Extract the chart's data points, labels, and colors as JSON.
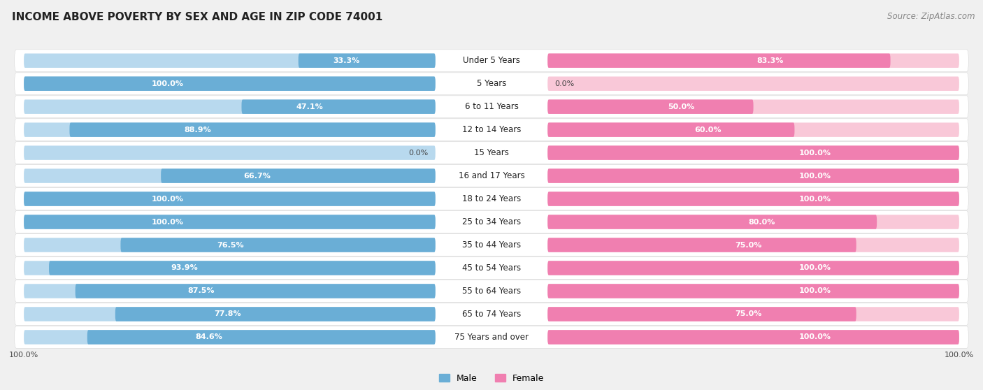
{
  "title": "INCOME ABOVE POVERTY BY SEX AND AGE IN ZIP CODE 74001",
  "source": "Source: ZipAtlas.com",
  "categories": [
    "Under 5 Years",
    "5 Years",
    "6 to 11 Years",
    "12 to 14 Years",
    "15 Years",
    "16 and 17 Years",
    "18 to 24 Years",
    "25 to 34 Years",
    "35 to 44 Years",
    "45 to 54 Years",
    "55 to 64 Years",
    "65 to 74 Years",
    "75 Years and over"
  ],
  "male_values": [
    33.3,
    100.0,
    47.1,
    88.9,
    0.0,
    66.7,
    100.0,
    100.0,
    76.5,
    93.9,
    87.5,
    77.8,
    84.6
  ],
  "female_values": [
    83.3,
    0.0,
    50.0,
    60.0,
    100.0,
    100.0,
    100.0,
    80.0,
    75.0,
    100.0,
    100.0,
    75.0,
    100.0
  ],
  "male_color": "#6aaed6",
  "female_color": "#f07fb0",
  "male_color_light": "#b8d9ee",
  "female_color_light": "#f9c8d8",
  "background_color": "#f0f0f0",
  "row_bg_color": "#e8e8e8",
  "title_fontsize": 11,
  "label_fontsize": 8.5,
  "value_fontsize": 8,
  "source_fontsize": 8.5
}
